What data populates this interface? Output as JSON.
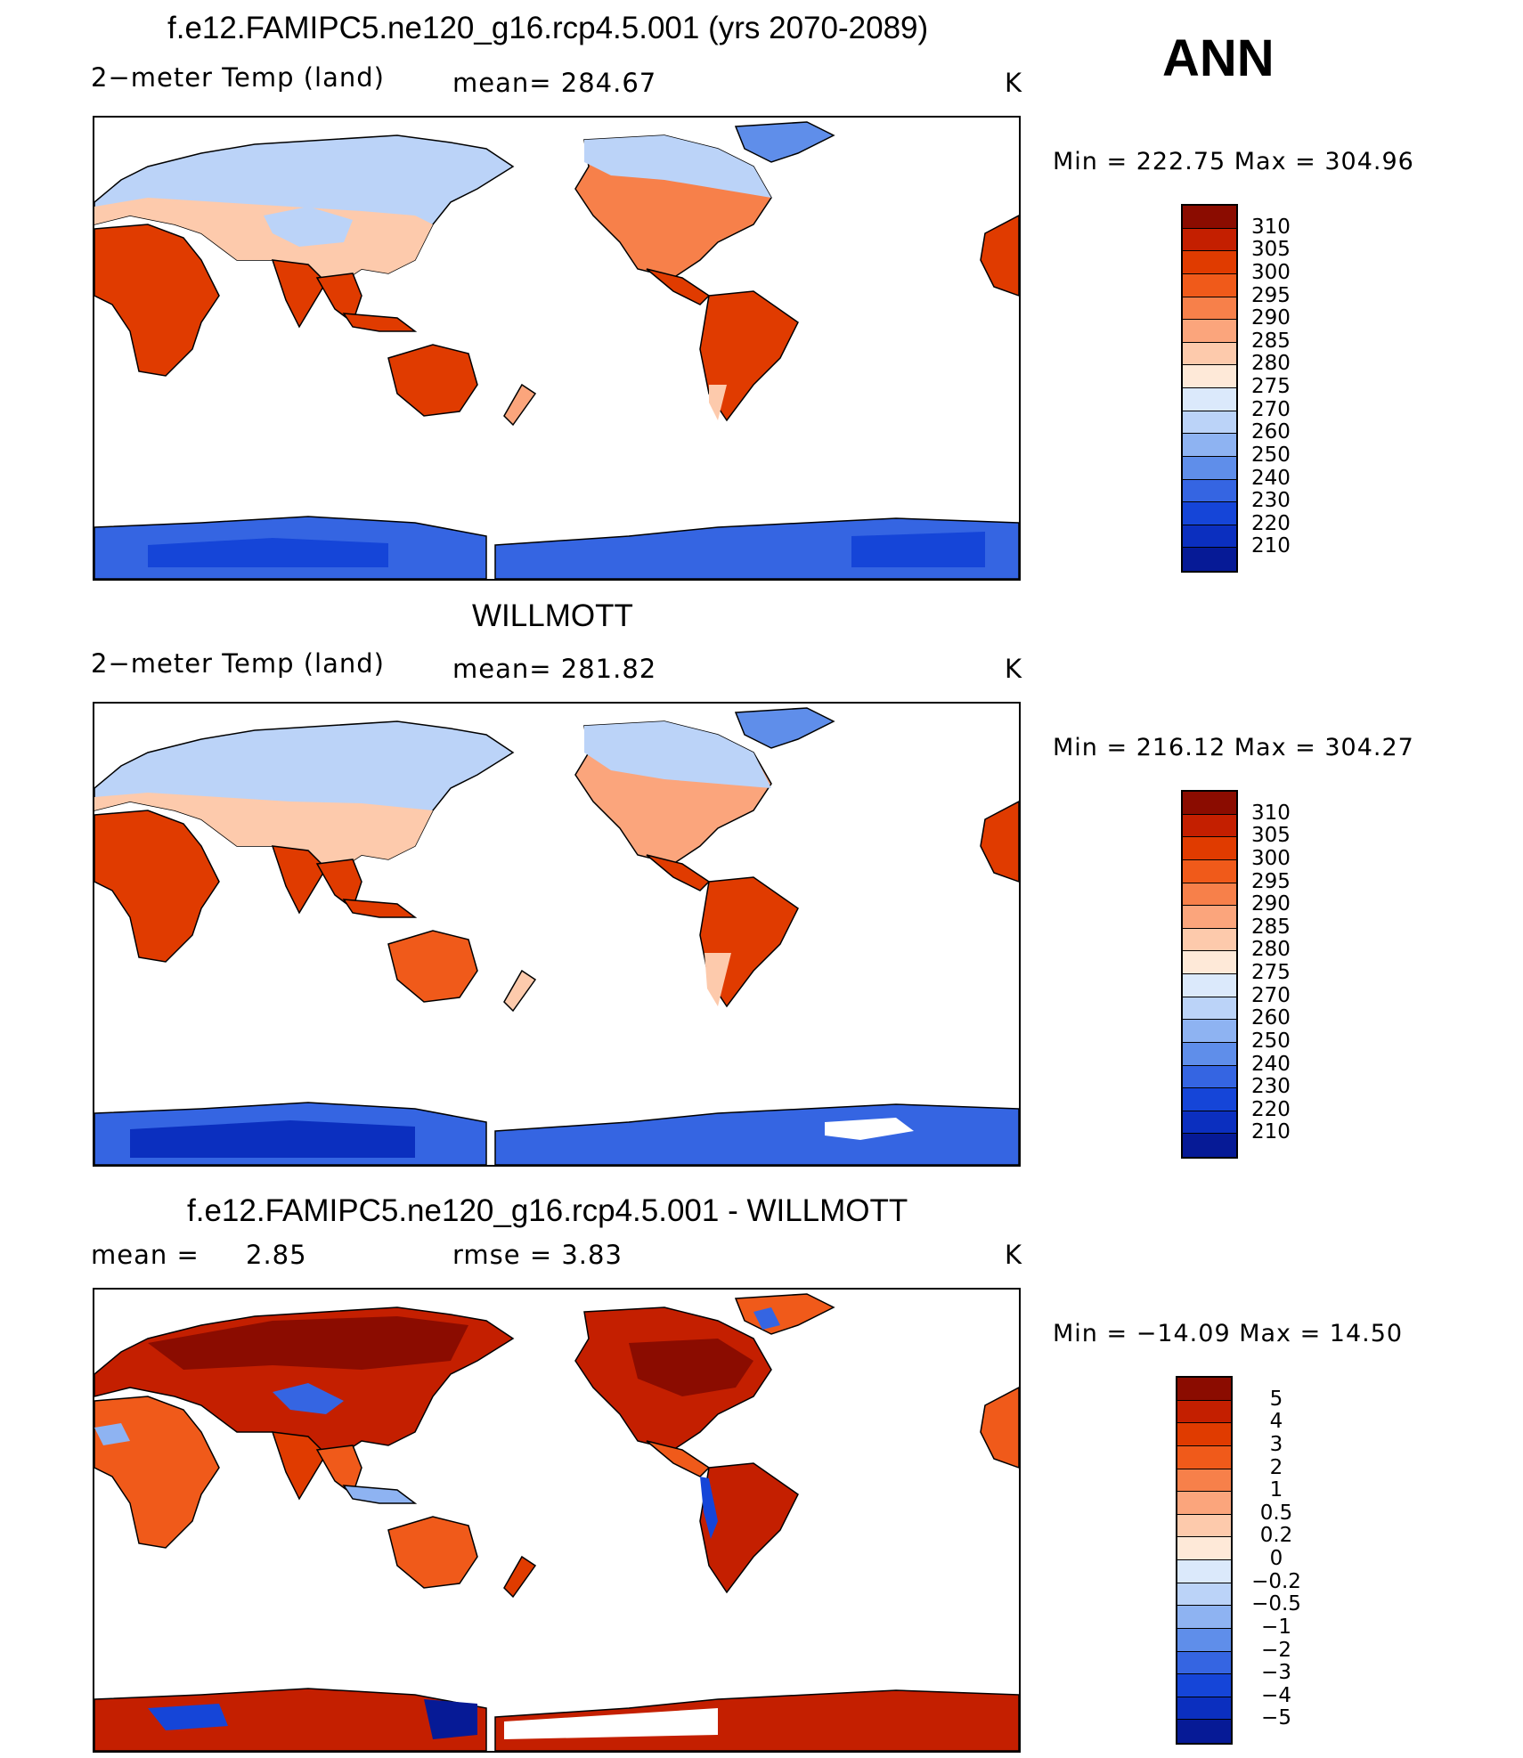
{
  "season": "ANN",
  "colors": {
    "abs": [
      "#8b0c00",
      "#c41f00",
      "#e03b00",
      "#f05a1a",
      "#f7804a",
      "#fba57c",
      "#fdcaac",
      "#fee9d8",
      "#dbe9fb",
      "#bbd3f8",
      "#8eb3f2",
      "#5f8eea",
      "#3565e2",
      "#1545d8",
      "#0b2fbf",
      "#061a96"
    ],
    "diff": [
      "#8b0c00",
      "#c41f00",
      "#e03b00",
      "#f05a1a",
      "#f7804a",
      "#fba57c",
      "#fdcaac",
      "#fee9d8",
      "#dbe9fb",
      "#bbd3f8",
      "#8eb3f2",
      "#5f8eea",
      "#3565e2",
      "#1545d8",
      "#0b2fbf",
      "#061a96"
    ]
  },
  "panels": [
    {
      "title": "f.e12.FAMIPC5.ne120_g16.rcp4.5.001 (yrs 2070-2089)",
      "variable": "2−meter Temp (land)",
      "stat1": "mean=  284.67",
      "stat2": "",
      "units": "K",
      "range": "Min  =  222.75  Max  =  304.96",
      "levels": [
        "310",
        "305",
        "300",
        "295",
        "290",
        "285",
        "280",
        "275",
        "270",
        "260",
        "250",
        "240",
        "230",
        "220",
        "210"
      ]
    },
    {
      "title": "WILLMOTT",
      "variable": "2−meter Temp (land)",
      "stat1": "mean=  281.82",
      "stat2": "",
      "units": "K",
      "range": "Min  =  216.12  Max  =  304.27",
      "levels": [
        "310",
        "305",
        "300",
        "295",
        "290",
        "285",
        "280",
        "275",
        "270",
        "260",
        "250",
        "240",
        "230",
        "220",
        "210"
      ]
    },
    {
      "title": "f.e12.FAMIPC5.ne120_g16.rcp4.5.001 - WILLMOTT",
      "variable": "mean  =",
      "stat1": "2.85",
      "stat2": "rmse  =      3.83",
      "units": "K",
      "range": "Min  =  −14.09  Max  =     14.50",
      "levels": [
        "5",
        "4",
        "3",
        "2",
        "1",
        "0.5",
        "0.2",
        "0",
        "−0.2",
        "−0.5",
        "−1",
        "−2",
        "−3",
        "−4",
        "−5"
      ]
    }
  ]
}
